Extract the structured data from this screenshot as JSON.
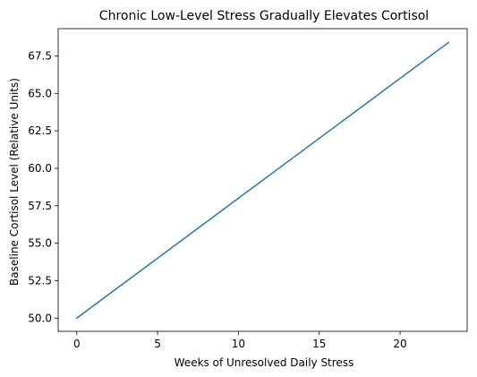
{
  "chart_data": {
    "type": "line",
    "title": "Chronic Low-Level Stress Gradually Elevates Cortisol",
    "xlabel": "Weeks of Unresolved Daily Stress",
    "ylabel": "Baseline Cortisol Level (Relative Units)",
    "xlim": [
      -1.15,
      24.15
    ],
    "ylim": [
      49.12,
      69.32
    ],
    "xticks": [
      0,
      5,
      10,
      15,
      20
    ],
    "xtick_labels": [
      "0",
      "5",
      "10",
      "15",
      "20"
    ],
    "yticks": [
      50.0,
      52.5,
      55.0,
      57.5,
      60.0,
      62.5,
      65.0,
      67.5
    ],
    "ytick_labels": [
      "50.0",
      "52.5",
      "55.0",
      "57.5",
      "60.0",
      "62.5",
      "65.0",
      "67.5"
    ],
    "grid": false,
    "legend": "none",
    "series": [
      {
        "color": "#1f77b4",
        "x": [
          0,
          23
        ],
        "y": [
          50.0,
          68.4
        ]
      }
    ]
  }
}
